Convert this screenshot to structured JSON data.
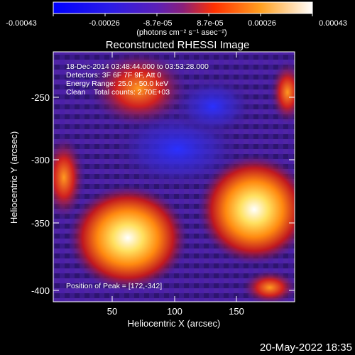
{
  "colorbar": {
    "tick_labels": [
      "-0.00043",
      "-0.00026",
      "-8.7e-05",
      "8.7e-05",
      "0.00026",
      "0.00043"
    ],
    "units_label": "(photons cm⁻² s⁻¹ asec⁻²)",
    "colormap_stops": [
      "#0000ff",
      "#3b1bd6",
      "#7a2ab6",
      "#ff6000",
      "#ffd040",
      "#ffffff"
    ]
  },
  "image": {
    "title": "Reconstructed RHESSI Image",
    "info_lines": [
      "18-Dec-2014 03:48:44.000 to 03:53:28.000",
      "Detectors: 3F 6F 7F 9F, Att 0",
      "Energy Range: 25.0 - 50.0 keV",
      "Clean    Total counts: 2.70E+03"
    ],
    "peak_label": "Position of Peak = [172,-342]",
    "xlabel": "Heliocentric X (arcsec)",
    "ylabel": "Heliocentric Y (arcsec)",
    "x_tick_labels": [
      "50",
      "100",
      "150"
    ],
    "y_tick_labels": [
      "-250",
      "-300",
      "-350",
      "-400"
    ],
    "timestamp": "20-May-2022 18:35"
  },
  "chart_data": {
    "type": "heatmap",
    "title": "Reconstructed RHESSI Image",
    "xlabel": "Heliocentric X (arcsec)",
    "ylabel": "Heliocentric Y (arcsec)",
    "xlim": [
      0,
      195
    ],
    "ylim": [
      -410,
      -225
    ],
    "peak_position": [
      172,
      -342
    ],
    "bright_regions": [
      {
        "x": 62,
        "y": -345,
        "note": "bright source"
      },
      {
        "x": 172,
        "y": -342,
        "note": "peak source"
      },
      {
        "x": 75,
        "y": -255,
        "note": "moderate source"
      }
    ],
    "color_range": [
      -0.00043,
      0.00043
    ]
  }
}
